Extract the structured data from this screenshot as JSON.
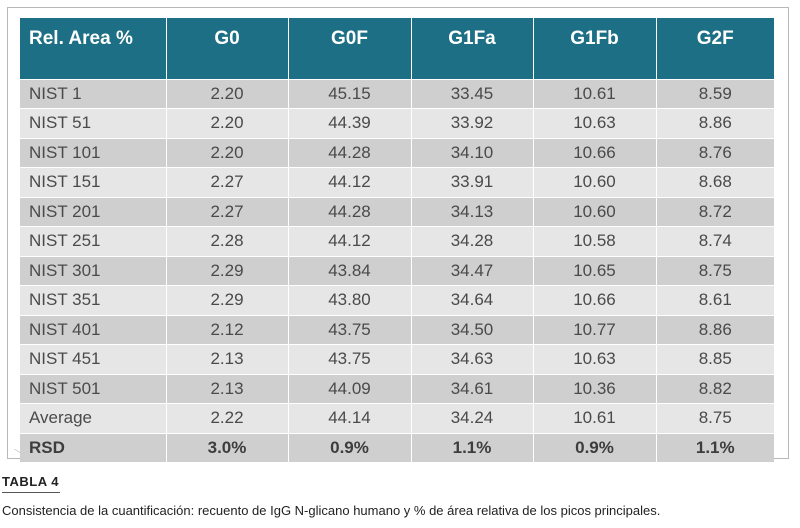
{
  "table": {
    "headers": [
      "Rel. Area %",
      "G0",
      "G0F",
      "G1Fa",
      "G1Fb",
      "G2F"
    ],
    "rows": [
      [
        "NIST 1",
        "2.20",
        "45.15",
        "33.45",
        "10.61",
        "8.59"
      ],
      [
        "NIST 51",
        "2.20",
        "44.39",
        "33.92",
        "10.63",
        "8.86"
      ],
      [
        "NIST 101",
        "2.20",
        "44.28",
        "34.10",
        "10.66",
        "8.76"
      ],
      [
        "NIST 151",
        "2.27",
        "44.12",
        "33.91",
        "10.60",
        "8.68"
      ],
      [
        "NIST 201",
        "2.27",
        "44.28",
        "34.13",
        "10.60",
        "8.72"
      ],
      [
        "NIST 251",
        "2.28",
        "44.12",
        "34.28",
        "10.58",
        "8.74"
      ],
      [
        "NIST 301",
        "2.29",
        "43.84",
        "34.47",
        "10.65",
        "8.75"
      ],
      [
        "NIST 351",
        "2.29",
        "43.80",
        "34.64",
        "10.66",
        "8.61"
      ],
      [
        "NIST 401",
        "2.12",
        "43.75",
        "34.50",
        "10.77",
        "8.86"
      ],
      [
        "NIST 451",
        "2.13",
        "43.75",
        "34.63",
        "10.63",
        "8.85"
      ],
      [
        "NIST 501",
        "2.13",
        "44.09",
        "34.61",
        "10.36",
        "8.82"
      ],
      [
        "Average",
        "2.22",
        "44.14",
        "34.24",
        "10.61",
        "8.75"
      ],
      [
        "RSD",
        "3.0%",
        "0.9%",
        "1.1%",
        "0.9%",
        "1.1%"
      ]
    ]
  },
  "caption": {
    "label": "TABLA 4",
    "text": "Consistencia de la cuantificación: recuento de IgG N-glicano humano y % de área relativa de los picos principales."
  },
  "colors": {
    "header_bg": "#1c6f84",
    "row_dark": "#cfcfcf",
    "row_light": "#e6e6e6"
  }
}
